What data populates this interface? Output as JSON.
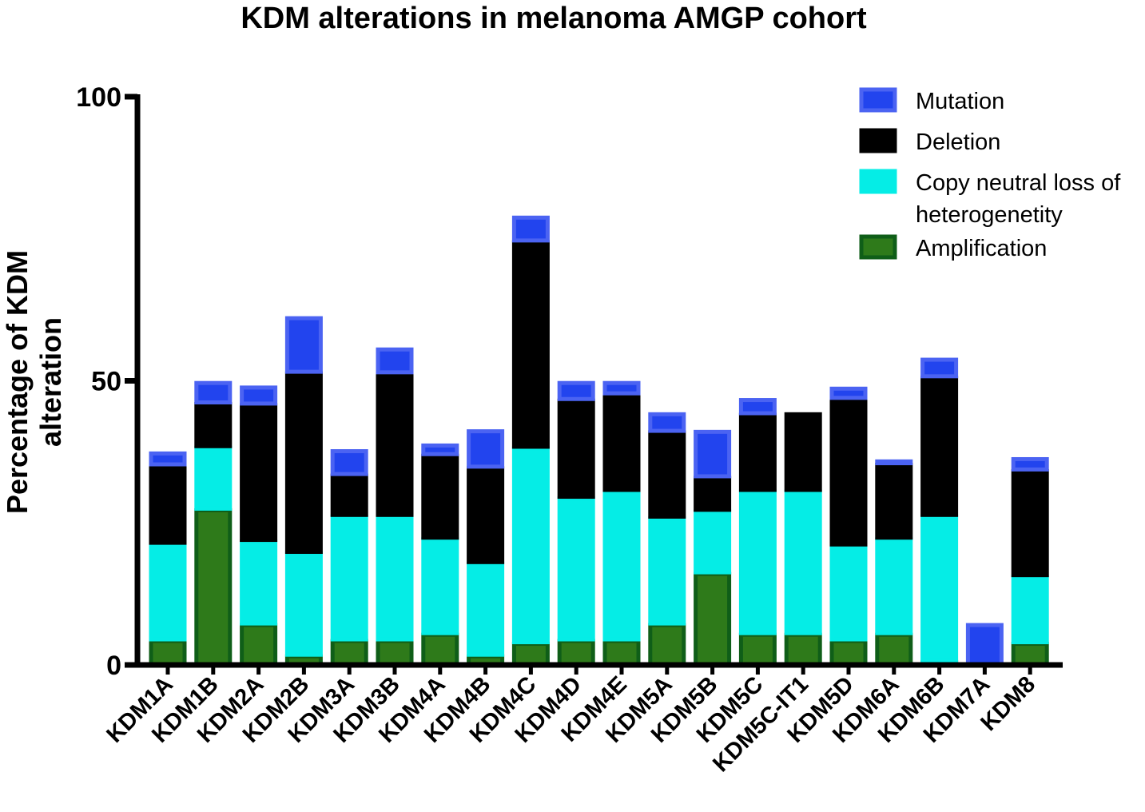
{
  "chart_data": {
    "type": "bar",
    "stacked": true,
    "title": "KDM alterations in melanoma AMGP cohort",
    "xlabel": "",
    "ylabel_lines": [
      "Percentage of KDM",
      "alteration"
    ],
    "ylim": [
      0,
      100
    ],
    "yticks": [
      0,
      50,
      100
    ],
    "grid": false,
    "legend_position": "top-right",
    "categories": [
      "KDM1A",
      "KDM1B",
      "KDM2A",
      "KDM2B",
      "KDM3A",
      "KDM3B",
      "KDM4A",
      "KDM4B",
      "KDM4C",
      "KDM4D",
      "KDM4E",
      "KDM5A",
      "KDM5B",
      "KDM5C",
      "KDM5C-IT1",
      "KDM5D",
      "KDM6A",
      "KDM6B",
      "KDM7A",
      "KDM8"
    ],
    "series": [
      {
        "name": "Amplification",
        "color": "#2e7a1a",
        "border": "#0f5e18",
        "values": [
          4.5,
          27.5,
          7.3,
          1.8,
          4.5,
          4.5,
          5.6,
          1.8,
          4.0,
          4.5,
          4.5,
          7.3,
          16.3,
          5.6,
          5.6,
          4.5,
          5.6,
          0.8,
          0.0,
          4.0
        ]
      },
      {
        "name": "Copy neutral loss of heterogenetity",
        "legend_lines": [
          "Copy neutral loss of",
          "heterogenetity"
        ],
        "color": "#05ede6",
        "border": "#05ede6",
        "values": [
          17.0,
          11.0,
          14.7,
          18.1,
          21.9,
          21.9,
          16.8,
          16.3,
          34.4,
          25.1,
          26.3,
          18.8,
          11.0,
          25.2,
          25.2,
          16.7,
          16.8,
          25.6,
          0.0,
          11.8
        ]
      },
      {
        "name": "Deletion",
        "color": "#000000",
        "border": "#000000",
        "values": [
          13.8,
          7.7,
          24.0,
          31.7,
          7.2,
          25.1,
          14.7,
          16.8,
          36.3,
          17.2,
          17.0,
          15.1,
          5.9,
          13.5,
          13.6,
          25.8,
          13.1,
          24.4,
          0.0,
          18.6
        ]
      },
      {
        "name": "Mutation",
        "color": "#2244ee",
        "border": "#4b63f2",
        "values": [
          2.2,
          3.7,
          3.1,
          9.7,
          4.3,
          4.3,
          1.8,
          6.5,
          4.3,
          3.1,
          2.1,
          3.2,
          8.1,
          2.6,
          0.0,
          1.9,
          0.6,
          3.2,
          7.3,
          2.1
        ]
      }
    ],
    "legend_order": [
      "Mutation",
      "Deletion",
      "Copy neutral loss of heterogenetity",
      "Amplification"
    ]
  }
}
